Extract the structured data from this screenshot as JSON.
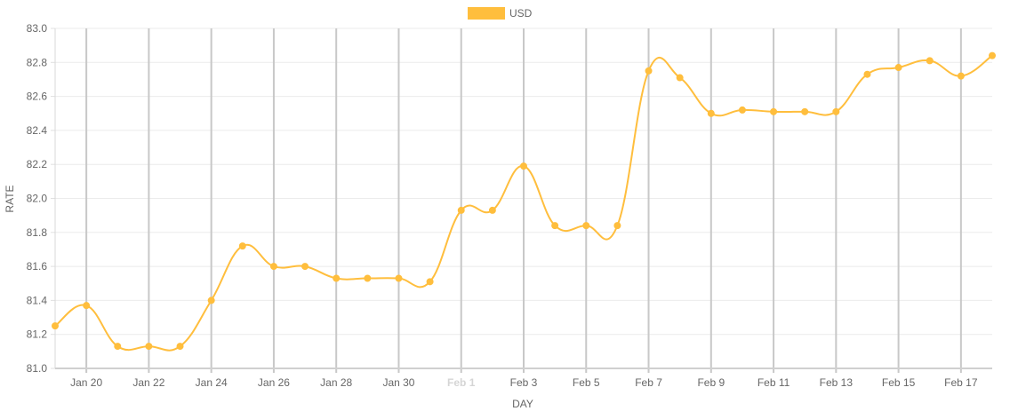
{
  "chart_data": {
    "type": "line",
    "title": "",
    "xlabel": "DAY",
    "ylabel": "RATE",
    "legend": {
      "position": "top-center"
    },
    "grid": true,
    "ylim": [
      81.0,
      83.0
    ],
    "y_ticks": [
      "81.0",
      "81.2",
      "81.4",
      "81.6",
      "81.8",
      "82.0",
      "82.2",
      "82.4",
      "82.6",
      "82.8",
      "83.0"
    ],
    "x_ticks": [
      {
        "label": "Jan 20",
        "index": 1,
        "highlight": false
      },
      {
        "label": "Jan 22",
        "index": 3,
        "highlight": false
      },
      {
        "label": "Jan 24",
        "index": 5,
        "highlight": false
      },
      {
        "label": "Jan 26",
        "index": 7,
        "highlight": false
      },
      {
        "label": "Jan 28",
        "index": 9,
        "highlight": false
      },
      {
        "label": "Jan 30",
        "index": 11,
        "highlight": false
      },
      {
        "label": "Feb 1",
        "index": 13,
        "highlight": true
      },
      {
        "label": "Feb 3",
        "index": 15,
        "highlight": false
      },
      {
        "label": "Feb 5",
        "index": 17,
        "highlight": false
      },
      {
        "label": "Feb 7",
        "index": 19,
        "highlight": false
      },
      {
        "label": "Feb 9",
        "index": 21,
        "highlight": false
      },
      {
        "label": "Feb 11",
        "index": 23,
        "highlight": false
      },
      {
        "label": "Feb 13",
        "index": 25,
        "highlight": false
      },
      {
        "label": "Feb 15",
        "index": 27,
        "highlight": false
      },
      {
        "label": "Feb 17",
        "index": 29,
        "highlight": false
      }
    ],
    "x": [
      "Jan 19",
      "Jan 20",
      "Jan 21",
      "Jan 22",
      "Jan 23",
      "Jan 24",
      "Jan 25",
      "Jan 26",
      "Jan 27",
      "Jan 28",
      "Jan 29",
      "Jan 30",
      "Jan 31",
      "Feb 1",
      "Feb 2",
      "Feb 3",
      "Feb 4",
      "Feb 5",
      "Feb 6",
      "Feb 7",
      "Feb 8",
      "Feb 9",
      "Feb 10",
      "Feb 11",
      "Feb 12",
      "Feb 13",
      "Feb 14",
      "Feb 15",
      "Feb 16",
      "Feb 17",
      "Feb 18"
    ],
    "series": [
      {
        "name": "USD",
        "color": "#ffbe3d",
        "values": [
          81.25,
          81.37,
          81.13,
          81.13,
          81.13,
          81.4,
          81.72,
          81.6,
          81.6,
          81.53,
          81.53,
          81.53,
          81.51,
          81.93,
          81.93,
          82.19,
          81.84,
          81.84,
          81.84,
          82.75,
          82.71,
          82.5,
          82.52,
          82.51,
          82.51,
          82.51,
          82.73,
          82.77,
          82.81,
          82.72,
          82.84
        ]
      }
    ]
  }
}
